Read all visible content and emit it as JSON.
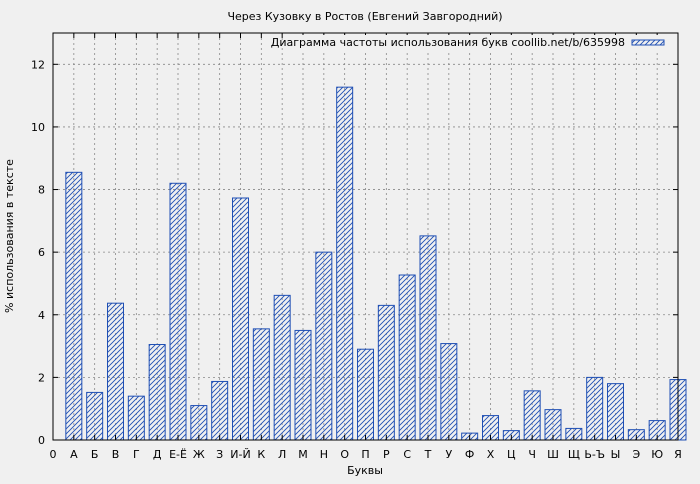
{
  "chart_data": {
    "type": "bar",
    "title": "Через Кузовку в Ростов (Евгений Завгородний)",
    "xlabel": "Буквы",
    "ylabel": "% использования в тексте",
    "legend_label": "Диаграмма частоты использования букв coollib.net/b/635998",
    "legend_position": "top-right",
    "grid": true,
    "ylim": [
      0,
      13
    ],
    "yticks": [
      0,
      2,
      4,
      6,
      8,
      10,
      12
    ],
    "x_origin_label": "0",
    "categories": [
      "А",
      "Б",
      "В",
      "Г",
      "Д",
      "Е-Ё",
      "Ж",
      "З",
      "И-Й",
      "К",
      "Л",
      "М",
      "Н",
      "О",
      "П",
      "Р",
      "С",
      "Т",
      "У",
      "Ф",
      "Х",
      "Ц",
      "Ч",
      "Ш",
      "Щ",
      "Ь-Ъ",
      "Ы",
      "Э",
      "Ю",
      "Я"
    ],
    "values": [
      8.55,
      1.52,
      4.37,
      1.4,
      3.05,
      8.2,
      1.1,
      1.87,
      7.73,
      3.55,
      4.62,
      3.5,
      6.0,
      11.27,
      2.9,
      4.3,
      5.27,
      6.52,
      3.08,
      0.22,
      0.78,
      0.3,
      1.57,
      0.97,
      0.37,
      2.0,
      1.8,
      0.33,
      0.62,
      1.93
    ],
    "bar_color": "#1f4fb4",
    "plot_background": "#f0f0f0"
  }
}
